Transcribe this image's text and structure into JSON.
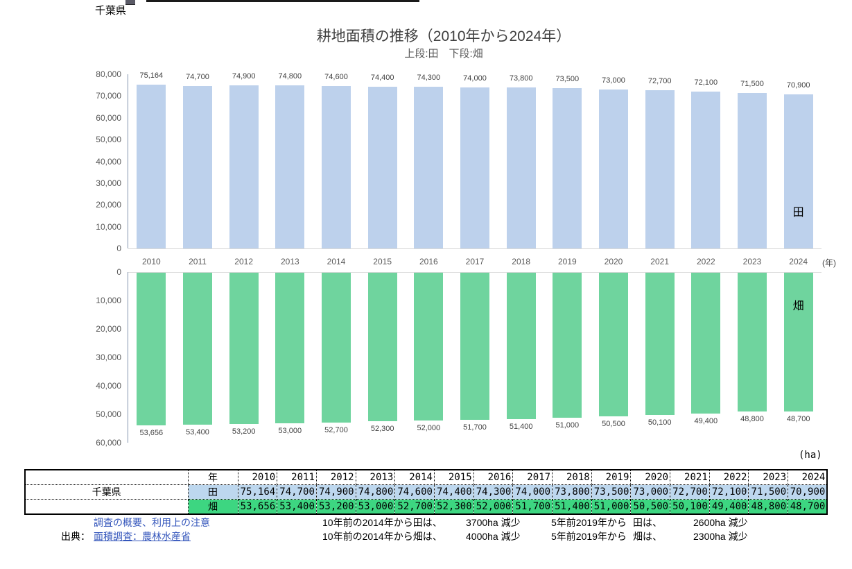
{
  "page": {
    "region_label": "千葉県",
    "title": "耕地面積の推移（2010年から2024年）",
    "subtitle": "上段:田　下段:畑",
    "area_unit_label": "(ha)",
    "year_unit_label": "(年)"
  },
  "chart_data": [
    {
      "type": "bar",
      "title": "耕地面積の推移（2010年から2024年） 上段:田",
      "series_name": "田",
      "categories": [
        "2010",
        "2011",
        "2012",
        "2013",
        "2014",
        "2015",
        "2016",
        "2017",
        "2018",
        "2019",
        "2020",
        "2021",
        "2022",
        "2023",
        "2024"
      ],
      "values": [
        75164,
        74700,
        74900,
        74800,
        74600,
        74400,
        74300,
        74000,
        73800,
        73500,
        73000,
        72700,
        72100,
        71500,
        70900
      ],
      "value_labels": [
        "75,164",
        "74,700",
        "74,900",
        "74,800",
        "74,600",
        "74,400",
        "74,300",
        "74,000",
        "73,800",
        "73,500",
        "73,000",
        "72,700",
        "72,100",
        "71,500",
        "70,900"
      ],
      "ylim": [
        0,
        80000
      ],
      "yticks": [
        "80,000",
        "70,000",
        "60,000",
        "50,000",
        "40,000",
        "30,000",
        "20,000",
        "10,000",
        "0"
      ],
      "direction": "up",
      "bar_color": "#BDD1EC",
      "grid": "off",
      "legend": "in-bar label on last bar",
      "xlabel": "(年)",
      "ylabel": "(ha)"
    },
    {
      "type": "bar",
      "title": "耕地面積の推移（2010年から2024年） 下段:畑",
      "series_name": "畑",
      "categories": [
        "2010",
        "2011",
        "2012",
        "2013",
        "2014",
        "2015",
        "2016",
        "2017",
        "2018",
        "2019",
        "2020",
        "2021",
        "2022",
        "2023",
        "2024"
      ],
      "values": [
        53656,
        53400,
        53200,
        53000,
        52700,
        52300,
        52000,
        51700,
        51400,
        51000,
        50500,
        50100,
        49400,
        48800,
        48700
      ],
      "value_labels": [
        "53,656",
        "53,400",
        "53,200",
        "53,000",
        "52,700",
        "52,300",
        "52,000",
        "51,700",
        "51,400",
        "51,000",
        "50,500",
        "50,100",
        "49,400",
        "48,800",
        "48,700"
      ],
      "ylim": [
        0,
        60000
      ],
      "yticks": [
        "0",
        "10,000",
        "20,000",
        "30,000",
        "40,000",
        "50,000",
        "60,000"
      ],
      "direction": "down",
      "bar_color": "#6FD49E",
      "grid": "off",
      "legend": "in-bar label on last bar",
      "xlabel": "(年)",
      "ylabel": "(ha)"
    }
  ],
  "table": {
    "region": "千葉県",
    "year_header": "年",
    "years": [
      "2010",
      "2011",
      "2012",
      "2013",
      "2014",
      "2015",
      "2016",
      "2017",
      "2018",
      "2019",
      "2020",
      "2021",
      "2022",
      "2023",
      "2024"
    ],
    "rows": [
      {
        "label": "田",
        "bg": "#BDD7EE",
        "values": [
          "75,164",
          "74,700",
          "74,900",
          "74,800",
          "74,600",
          "74,400",
          "74,300",
          "74,000",
          "73,800",
          "73,500",
          "73,000",
          "72,700",
          "72,100",
          "71,500",
          "70,900"
        ]
      },
      {
        "label": "畑",
        "bg": "#3DD681",
        "values": [
          "53,656",
          "53,400",
          "53,200",
          "53,000",
          "52,700",
          "52,300",
          "52,000",
          "51,700",
          "51,400",
          "51,000",
          "50,500",
          "50,100",
          "49,400",
          "48,800",
          "48,700"
        ]
      }
    ]
  },
  "footer": {
    "survey_overview_link": "調査の概要、利用上の注意",
    "source_prefix": "出典：",
    "source_link": "面積調査：農林水産省",
    "link_color": "#3355BB",
    "notes": [
      {
        "c1": "10年前の2014年から田は、",
        "c2": "3700ha 減少",
        "c3": "5年前2019年から",
        "c4": "田は、",
        "c5": "2600ha 減少"
      },
      {
        "c1": "10年前の2014年から畑は、",
        "c2": "4000ha 減少",
        "c3": "5年前2019年から",
        "c4": "畑は、",
        "c5": "2300ha 減少"
      }
    ]
  }
}
